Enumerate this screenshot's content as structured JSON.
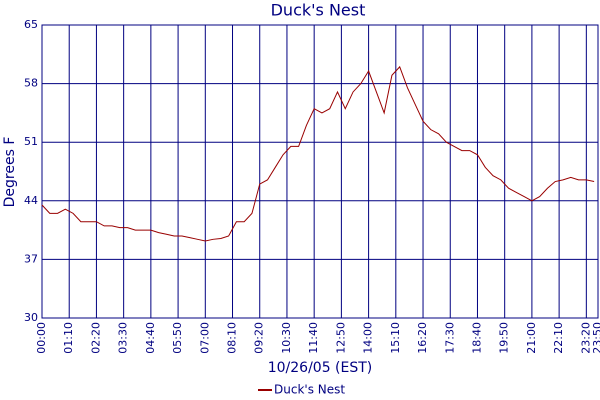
{
  "chart_data": {
    "type": "line",
    "title": "Duck's Nest",
    "x_label": "10/26/05 (EST)",
    "y_label": "Degrees F",
    "x": [
      0,
      20,
      40,
      60,
      80,
      100,
      120,
      140,
      160,
      180,
      200,
      220,
      240,
      260,
      280,
      300,
      320,
      340,
      360,
      380,
      400,
      420,
      440,
      460,
      480,
      500,
      520,
      540,
      560,
      580,
      600,
      620,
      640,
      660,
      680,
      700,
      720,
      740,
      760,
      780,
      800,
      820,
      840,
      860,
      880,
      900,
      920,
      940,
      960,
      980,
      1000,
      1020,
      1040,
      1060,
      1080,
      1100,
      1120,
      1140,
      1160,
      1180,
      1200,
      1220,
      1240,
      1260,
      1280,
      1300,
      1320,
      1340,
      1360,
      1380,
      1400,
      1420
    ],
    "series": [
      {
        "name": "Duck's Nest",
        "color": "#990000",
        "values": [
          43.5,
          42.5,
          42.5,
          43,
          42.5,
          41.5,
          41.5,
          41.5,
          41,
          41,
          40.8,
          40.8,
          40.5,
          40.5,
          40.5,
          40.2,
          40,
          39.8,
          39.8,
          39.6,
          39.4,
          39.2,
          39.4,
          39.5,
          39.8,
          41.5,
          41.5,
          42.5,
          46,
          46.5,
          48,
          49.5,
          50.5,
          50.5,
          53,
          55,
          54.5,
          55,
          57,
          55,
          57,
          58,
          59.5,
          57,
          54.5,
          59,
          60,
          57.5,
          55.5,
          53.5,
          52.5,
          52,
          51,
          50.5,
          50,
          50,
          49.5,
          48,
          47,
          46.5,
          45.5,
          45,
          44.5,
          44,
          44.5,
          45.5,
          46.3,
          46.5,
          46.8,
          46.5,
          46.5,
          46.3
        ]
      }
    ],
    "xlim": [
      0,
      1430
    ],
    "xticks": [
      {
        "value": 0,
        "label": "00:00"
      },
      {
        "value": 70,
        "label": "01:10"
      },
      {
        "value": 140,
        "label": "02:20"
      },
      {
        "value": 210,
        "label": "03:30"
      },
      {
        "value": 280,
        "label": "04:40"
      },
      {
        "value": 350,
        "label": "05:50"
      },
      {
        "value": 420,
        "label": "07:00"
      },
      {
        "value": 490,
        "label": "08:10"
      },
      {
        "value": 560,
        "label": "09:20"
      },
      {
        "value": 630,
        "label": "10:30"
      },
      {
        "value": 700,
        "label": "11:40"
      },
      {
        "value": 770,
        "label": "12:50"
      },
      {
        "value": 840,
        "label": "14:00"
      },
      {
        "value": 910,
        "label": "15:10"
      },
      {
        "value": 980,
        "label": "16:20"
      },
      {
        "value": 1050,
        "label": "17:30"
      },
      {
        "value": 1120,
        "label": "18:40"
      },
      {
        "value": 1190,
        "label": "19:50"
      },
      {
        "value": 1260,
        "label": "21:00"
      },
      {
        "value": 1330,
        "label": "22:10"
      },
      {
        "value": 1400,
        "label": "23:20"
      },
      {
        "value": 1430,
        "label": "23:50"
      }
    ],
    "ylim": [
      30,
      65
    ],
    "yticks": [
      30,
      37,
      44,
      51,
      58,
      65
    ],
    "grid": true,
    "legend": "bottom"
  }
}
